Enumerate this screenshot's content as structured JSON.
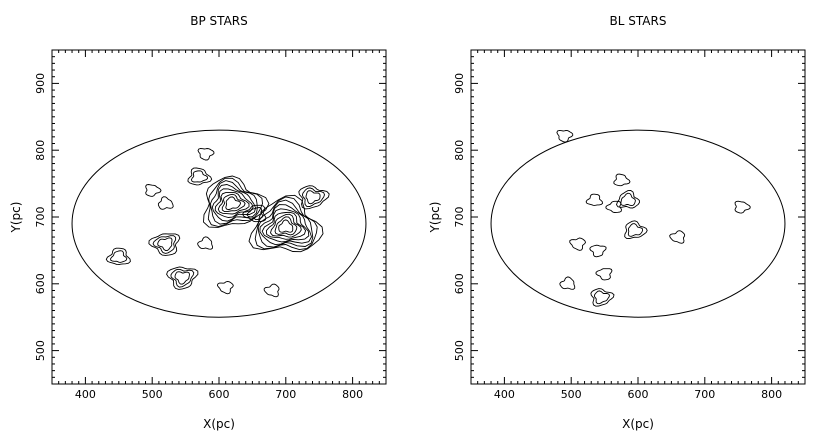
{
  "chart_data": [
    {
      "type": "contour",
      "title": "BP STARS",
      "xlabel": "X(pc)",
      "ylabel": "Y(pc)",
      "xlim": [
        350,
        850
      ],
      "ylim": [
        450,
        950
      ],
      "xticks": [
        "400",
        "500",
        "600",
        "700",
        "800"
      ],
      "yticks": [
        "500",
        "600",
        "700",
        "800",
        "900"
      ],
      "ellipse": {
        "center": [
          600,
          690
        ],
        "semi_axes": [
          220,
          140
        ]
      },
      "peaks": [
        {
          "x": 700,
          "y": 685,
          "levels": 9
        },
        {
          "x": 620,
          "y": 720,
          "levels": 8
        },
        {
          "x": 740,
          "y": 730,
          "levels": 3
        },
        {
          "x": 545,
          "y": 610,
          "levels": 3
        },
        {
          "x": 520,
          "y": 660,
          "levels": 3
        },
        {
          "x": 655,
          "y": 705,
          "levels": 2
        },
        {
          "x": 450,
          "y": 640,
          "levels": 2
        },
        {
          "x": 570,
          "y": 760,
          "levels": 2
        },
        {
          "x": 500,
          "y": 740,
          "levels": 1
        },
        {
          "x": 580,
          "y": 795,
          "levels": 1
        },
        {
          "x": 610,
          "y": 595,
          "levels": 1
        },
        {
          "x": 680,
          "y": 590,
          "levels": 1
        },
        {
          "x": 580,
          "y": 660,
          "levels": 1
        },
        {
          "x": 520,
          "y": 720,
          "levels": 1
        }
      ]
    },
    {
      "type": "contour",
      "title": "BL STARS",
      "xlabel": "X(pc)",
      "ylabel": "Y(pc)",
      "xlim": [
        350,
        850
      ],
      "ylim": [
        450,
        950
      ],
      "xticks": [
        "400",
        "500",
        "600",
        "700",
        "800"
      ],
      "yticks": [
        "500",
        "600",
        "700",
        "800",
        "900"
      ],
      "ellipse": {
        "center": [
          600,
          690
        ],
        "semi_axes": [
          220,
          140
        ]
      },
      "peaks": [
        {
          "x": 585,
          "y": 725,
          "levels": 2
        },
        {
          "x": 595,
          "y": 680,
          "levels": 2
        },
        {
          "x": 545,
          "y": 580,
          "levels": 2
        },
        {
          "x": 540,
          "y": 650,
          "levels": 1
        },
        {
          "x": 550,
          "y": 615,
          "levels": 1
        },
        {
          "x": 565,
          "y": 715,
          "levels": 1
        },
        {
          "x": 535,
          "y": 725,
          "levels": 1
        },
        {
          "x": 575,
          "y": 755,
          "levels": 1
        },
        {
          "x": 755,
          "y": 715,
          "levels": 1
        },
        {
          "x": 490,
          "y": 822,
          "levels": 1
        },
        {
          "x": 510,
          "y": 660,
          "levels": 1
        },
        {
          "x": 660,
          "y": 670,
          "levels": 1
        },
        {
          "x": 495,
          "y": 600,
          "levels": 1
        }
      ]
    }
  ]
}
